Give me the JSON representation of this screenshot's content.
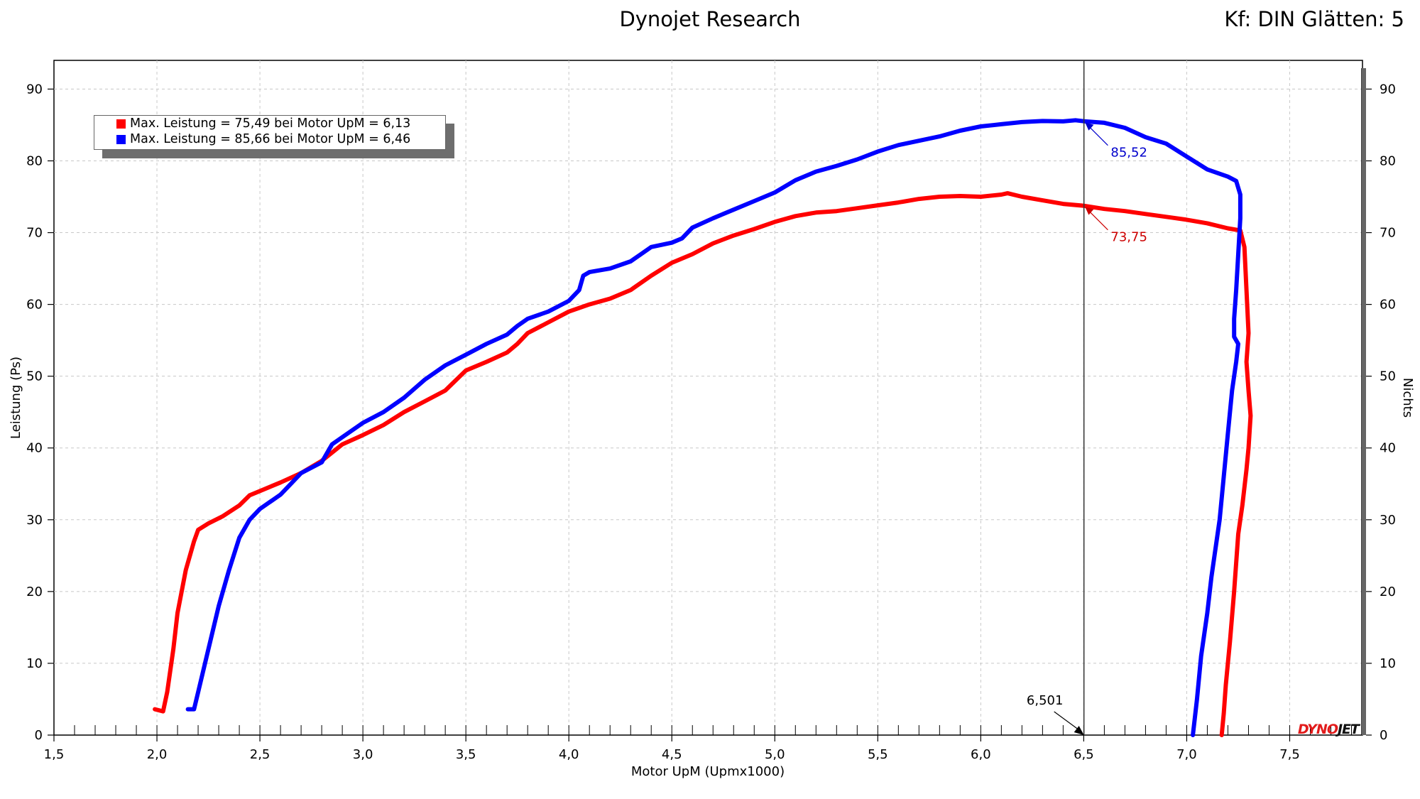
{
  "title": "Dynojet Research",
  "subtitle": "Kf: DIN Glätten: 5",
  "logo": {
    "part1": "DYNO",
    "part2": "JET",
    "color1": "#e21b1b",
    "color2": "#111111"
  },
  "chart_data": {
    "type": "line",
    "xlabel": "Motor UpM (Upmx1000)",
    "ylabel": "Leistung (Ps)",
    "y2label": "Nichts",
    "xlim": [
      1.5,
      7.85
    ],
    "ylim": [
      0,
      94
    ],
    "xticks": [
      "1,5",
      "2,0",
      "2,5",
      "3,0",
      "3,5",
      "4,0",
      "4,5",
      "5,0",
      "5,5",
      "6,0",
      "6,5",
      "7,0",
      "7,5"
    ],
    "xtick_values": [
      1.5,
      2.0,
      2.5,
      3.0,
      3.5,
      4.0,
      4.5,
      5.0,
      5.5,
      6.0,
      6.5,
      7.0,
      7.5
    ],
    "yticks": [
      "0",
      "10",
      "20",
      "30",
      "40",
      "50",
      "60",
      "70",
      "80",
      "90"
    ],
    "ytick_values": [
      0,
      10,
      20,
      30,
      40,
      50,
      60,
      70,
      80,
      90
    ],
    "grid": true,
    "legend_position": "top-left",
    "legend": [
      {
        "text": "Max. Leistung = 75,49 bei Motor UpM = 6,13",
        "color": "#ff0000"
      },
      {
        "text": "Max. Leistung = 85,66 bei Motor UpM = 6,46",
        "color": "#0000ff"
      }
    ],
    "cursor": {
      "x": 6.501,
      "label": "6,501"
    },
    "annotations": [
      {
        "label": "85,52",
        "x": 6.5,
        "y": 85.52,
        "color": "#0000cc"
      },
      {
        "label": "73,75",
        "x": 6.5,
        "y": 73.75,
        "color": "#cc0000"
      }
    ],
    "series": [
      {
        "color": "#ff0000",
        "points": [
          [
            1.99,
            3.6
          ],
          [
            2.03,
            3.3
          ],
          [
            2.05,
            6
          ],
          [
            2.08,
            12
          ],
          [
            2.1,
            17
          ],
          [
            2.14,
            23
          ],
          [
            2.18,
            27
          ],
          [
            2.2,
            28.6
          ],
          [
            2.25,
            29.5
          ],
          [
            2.32,
            30.5
          ],
          [
            2.4,
            32
          ],
          [
            2.45,
            33.4
          ],
          [
            2.5,
            34
          ],
          [
            2.6,
            35.2
          ],
          [
            2.7,
            36.5
          ],
          [
            2.8,
            38.2
          ],
          [
            2.9,
            40.5
          ],
          [
            3.0,
            41.8
          ],
          [
            3.1,
            43.2
          ],
          [
            3.2,
            45
          ],
          [
            3.3,
            46.5
          ],
          [
            3.4,
            48
          ],
          [
            3.5,
            50.8
          ],
          [
            3.6,
            52
          ],
          [
            3.7,
            53.3
          ],
          [
            3.75,
            54.5
          ],
          [
            3.8,
            56
          ],
          [
            3.9,
            57.5
          ],
          [
            4.0,
            59
          ],
          [
            4.1,
            60
          ],
          [
            4.2,
            60.8
          ],
          [
            4.3,
            62
          ],
          [
            4.4,
            64
          ],
          [
            4.5,
            65.8
          ],
          [
            4.6,
            67
          ],
          [
            4.7,
            68.5
          ],
          [
            4.8,
            69.6
          ],
          [
            4.9,
            70.5
          ],
          [
            5.0,
            71.5
          ],
          [
            5.1,
            72.3
          ],
          [
            5.2,
            72.8
          ],
          [
            5.3,
            73
          ],
          [
            5.4,
            73.4
          ],
          [
            5.5,
            73.8
          ],
          [
            5.6,
            74.2
          ],
          [
            5.7,
            74.7
          ],
          [
            5.8,
            75
          ],
          [
            5.9,
            75.1
          ],
          [
            6.0,
            75
          ],
          [
            6.1,
            75.3
          ],
          [
            6.13,
            75.49
          ],
          [
            6.2,
            75
          ],
          [
            6.3,
            74.5
          ],
          [
            6.4,
            74
          ],
          [
            6.5,
            73.75
          ],
          [
            6.6,
            73.3
          ],
          [
            6.7,
            73
          ],
          [
            6.8,
            72.6
          ],
          [
            6.9,
            72.2
          ],
          [
            7.0,
            71.8
          ],
          [
            7.1,
            71.3
          ],
          [
            7.2,
            70.6
          ],
          [
            7.26,
            70.3
          ],
          [
            7.28,
            68
          ],
          [
            7.29,
            62
          ],
          [
            7.3,
            56
          ],
          [
            7.29,
            52
          ],
          [
            7.3,
            48
          ],
          [
            7.31,
            44.5
          ],
          [
            7.3,
            40
          ],
          [
            7.29,
            37
          ],
          [
            7.27,
            32
          ],
          [
            7.25,
            28
          ],
          [
            7.23,
            20
          ],
          [
            7.21,
            13
          ],
          [
            7.2,
            10
          ],
          [
            7.19,
            7
          ],
          [
            7.18,
            3
          ],
          [
            7.17,
            0
          ]
        ]
      },
      {
        "color": "#0000ff",
        "points": [
          [
            2.15,
            3.6
          ],
          [
            2.18,
            3.6
          ],
          [
            2.2,
            6
          ],
          [
            2.25,
            12
          ],
          [
            2.3,
            18
          ],
          [
            2.35,
            23
          ],
          [
            2.4,
            27.5
          ],
          [
            2.45,
            30
          ],
          [
            2.5,
            31.5
          ],
          [
            2.55,
            32.5
          ],
          [
            2.6,
            33.5
          ],
          [
            2.65,
            35
          ],
          [
            2.7,
            36.5
          ],
          [
            2.8,
            38
          ],
          [
            2.85,
            40.5
          ],
          [
            2.9,
            41.5
          ],
          [
            3.0,
            43.5
          ],
          [
            3.1,
            45
          ],
          [
            3.2,
            47
          ],
          [
            3.3,
            49.5
          ],
          [
            3.4,
            51.5
          ],
          [
            3.5,
            53
          ],
          [
            3.6,
            54.5
          ],
          [
            3.7,
            55.8
          ],
          [
            3.75,
            57
          ],
          [
            3.8,
            58
          ],
          [
            3.9,
            59
          ],
          [
            4.0,
            60.5
          ],
          [
            4.05,
            62
          ],
          [
            4.07,
            64
          ],
          [
            4.1,
            64.5
          ],
          [
            4.2,
            65
          ],
          [
            4.3,
            66
          ],
          [
            4.35,
            67
          ],
          [
            4.4,
            68
          ],
          [
            4.5,
            68.6
          ],
          [
            4.55,
            69.2
          ],
          [
            4.6,
            70.7
          ],
          [
            4.7,
            72
          ],
          [
            4.8,
            73.2
          ],
          [
            4.9,
            74.4
          ],
          [
            5.0,
            75.6
          ],
          [
            5.1,
            77.3
          ],
          [
            5.2,
            78.5
          ],
          [
            5.3,
            79.3
          ],
          [
            5.4,
            80.2
          ],
          [
            5.5,
            81.3
          ],
          [
            5.6,
            82.2
          ],
          [
            5.7,
            82.8
          ],
          [
            5.8,
            83.4
          ],
          [
            5.9,
            84.2
          ],
          [
            6.0,
            84.8
          ],
          [
            6.1,
            85.1
          ],
          [
            6.2,
            85.4
          ],
          [
            6.3,
            85.55
          ],
          [
            6.4,
            85.5
          ],
          [
            6.46,
            85.66
          ],
          [
            6.5,
            85.52
          ],
          [
            6.6,
            85.3
          ],
          [
            6.7,
            84.6
          ],
          [
            6.8,
            83.3
          ],
          [
            6.9,
            82.4
          ],
          [
            7.0,
            80.6
          ],
          [
            7.1,
            78.8
          ],
          [
            7.2,
            77.8
          ],
          [
            7.24,
            77.2
          ],
          [
            7.26,
            75.3
          ],
          [
            7.26,
            72
          ],
          [
            7.25,
            67
          ],
          [
            7.24,
            62
          ],
          [
            7.23,
            58
          ],
          [
            7.23,
            55.5
          ],
          [
            7.25,
            54.5
          ],
          [
            7.24,
            52
          ],
          [
            7.22,
            48
          ],
          [
            7.2,
            42
          ],
          [
            7.18,
            36
          ],
          [
            7.16,
            30
          ],
          [
            7.12,
            22
          ],
          [
            7.1,
            17
          ],
          [
            7.07,
            11
          ],
          [
            7.05,
            5
          ],
          [
            7.03,
            0
          ]
        ]
      }
    ]
  }
}
